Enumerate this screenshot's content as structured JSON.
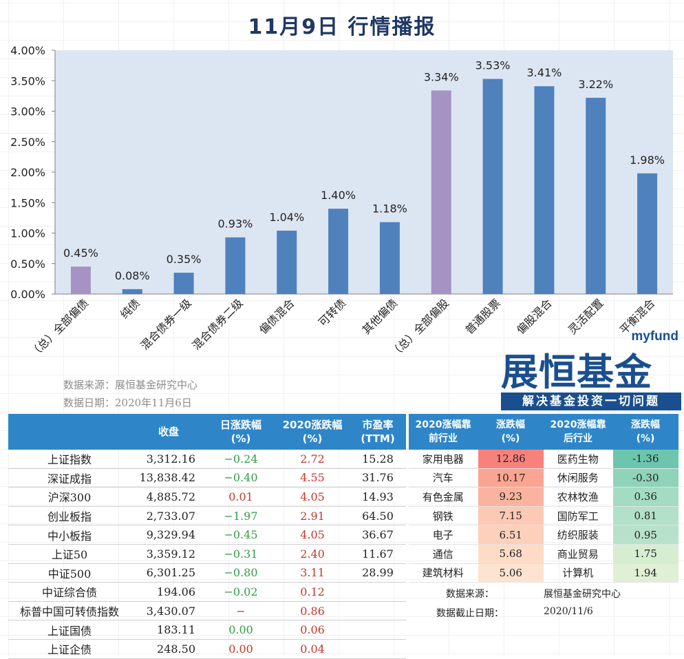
{
  "title": "11月9日  行情播报",
  "chart_data": {
    "type": "bar",
    "categories": [
      "（总）全部偏债",
      "纯债",
      "混合债券一级",
      "混合债券二级",
      "偏债混合",
      "可转债",
      "其他偏债",
      "（总）全部偏股",
      "普通股票",
      "偏股混合",
      "灵活配置",
      "平衡混合"
    ],
    "values": [
      0.45,
      0.08,
      0.35,
      0.93,
      1.04,
      1.4,
      1.18,
      3.34,
      3.53,
      3.41,
      3.22,
      1.98
    ],
    "value_labels": [
      "0.45%",
      "0.08%",
      "0.35%",
      "0.93%",
      "1.04%",
      "1.40%",
      "1.18%",
      "3.34%",
      "3.53%",
      "3.41%",
      "3.22%",
      "1.98%"
    ],
    "bar_colors": [
      "#A593C4",
      "#4F81BD",
      "#4F81BD",
      "#4F81BD",
      "#4F81BD",
      "#4F81BD",
      "#4F81BD",
      "#A593C4",
      "#4F81BD",
      "#4F81BD",
      "#4F81BD",
      "#4F81BD"
    ],
    "yticks": [
      "0.00%",
      "0.50%",
      "1.00%",
      "1.50%",
      "2.00%",
      "2.50%",
      "3.00%",
      "3.50%",
      "4.00%"
    ],
    "ylim": [
      0,
      4
    ],
    "plot_bg": "#DCE6F2",
    "grid": false
  },
  "source": {
    "line1": "数据来源：展恒基金研究中心",
    "line2": "数据日期：2020年11月6日"
  },
  "logo": {
    "small": "myfund",
    "big": "展恒基金",
    "slogan": "解决基金投资一切问题"
  },
  "index_table": {
    "headers": [
      "",
      "收盘",
      "日涨跌幅\n(%)",
      "2020涨跌幅\n(%)",
      "市盈率\n(TTM)"
    ],
    "rows": [
      {
        "name": "上证指数",
        "close": "3,312.16",
        "day": "−0.24",
        "day_dir": "down",
        "yr": "2.72",
        "yr_dir": "up",
        "pe": "15.28"
      },
      {
        "name": "深证成指",
        "close": "13,838.42",
        "day": "−0.40",
        "day_dir": "down",
        "yr": "4.55",
        "yr_dir": "up",
        "pe": "31.76"
      },
      {
        "name": "沪深300",
        "close": "4,885.72",
        "day": "0.01",
        "day_dir": "up",
        "yr": "4.05",
        "yr_dir": "up",
        "pe": "14.93"
      },
      {
        "name": "创业板指",
        "close": "2,733.07",
        "day": "−1.97",
        "day_dir": "down",
        "yr": "2.91",
        "yr_dir": "up",
        "pe": "64.50"
      },
      {
        "name": "中小板指",
        "close": "9,329.94",
        "day": "−0.45",
        "day_dir": "down",
        "yr": "4.05",
        "yr_dir": "up",
        "pe": "36.67"
      },
      {
        "name": "上证50",
        "close": "3,359.12",
        "day": "−0.31",
        "day_dir": "down",
        "yr": "2.40",
        "yr_dir": "up",
        "pe": "11.67"
      },
      {
        "name": "中证500",
        "close": "6,301.25",
        "day": "−0.80",
        "day_dir": "down",
        "yr": "3.11",
        "yr_dir": "up",
        "pe": "28.99"
      },
      {
        "name": "中证综合债",
        "close": "194.06",
        "day": "−0.02",
        "day_dir": "down",
        "yr": "0.12",
        "yr_dir": "up",
        "pe": ""
      },
      {
        "name": "标普中国可转债指数",
        "close": "3,430.07",
        "day": "−",
        "day_dir": "dash",
        "yr": "0.86",
        "yr_dir": "up",
        "pe": ""
      },
      {
        "name": "上证国债",
        "close": "183.11",
        "day": "0.00",
        "day_dir": "flat",
        "yr": "0.06",
        "yr_dir": "up",
        "pe": ""
      },
      {
        "name": "上证企债",
        "close": "248.50",
        "day": "0.00",
        "day_dir": "up",
        "yr": "0.04",
        "yr_dir": "up",
        "pe": ""
      }
    ]
  },
  "industry_table": {
    "headers": [
      "2020涨幅靠\n前行业",
      "涨跌幅\n(%)",
      "2020涨幅靠\n后行业",
      "涨跌幅\n(%)"
    ],
    "rows": [
      {
        "top": "家用电器",
        "top_val": "12.86",
        "top_color": "#F8827A",
        "bottom": "医药生物",
        "bottom_val": "-1.36",
        "bottom_color": "#6CC6AE"
      },
      {
        "top": "汽车",
        "top_val": "10.17",
        "top_color": "#F9A592",
        "bottom": "休闲服务",
        "bottom_val": "-0.30",
        "bottom_color": "#8ED3BA"
      },
      {
        "top": "有色金属",
        "top_val": "9.23",
        "top_color": "#FAB39E",
        "bottom": "农林牧渔",
        "bottom_val": "0.36",
        "bottom_color": "#A4DBC3"
      },
      {
        "top": "钢铁",
        "top_val": "7.15",
        "top_color": "#FBC9B4",
        "bottom": "国防军工",
        "bottom_val": "0.81",
        "bottom_color": "#B2E0C8"
      },
      {
        "top": "电子",
        "top_val": "6.51",
        "top_color": "#FCD0BB",
        "bottom": "纺织服装",
        "bottom_val": "0.95",
        "bottom_color": "#B7E1CA"
      },
      {
        "top": "通信",
        "top_val": "5.68",
        "top_color": "#FDDBC7",
        "bottom": "商业贸易",
        "bottom_val": "1.75",
        "bottom_color": "#D6EDD2"
      },
      {
        "top": "建筑材料",
        "top_val": "5.06",
        "top_color": "#FDE3D0",
        "bottom": "计算机",
        "bottom_val": "1.94",
        "bottom_color": "#DFF0D4"
      }
    ]
  },
  "industry_foot": {
    "source_label": "数据来源：",
    "source_value": "展恒基金研究中心",
    "date_label": "数据截止日期：",
    "date_value": "2020/11/6"
  }
}
